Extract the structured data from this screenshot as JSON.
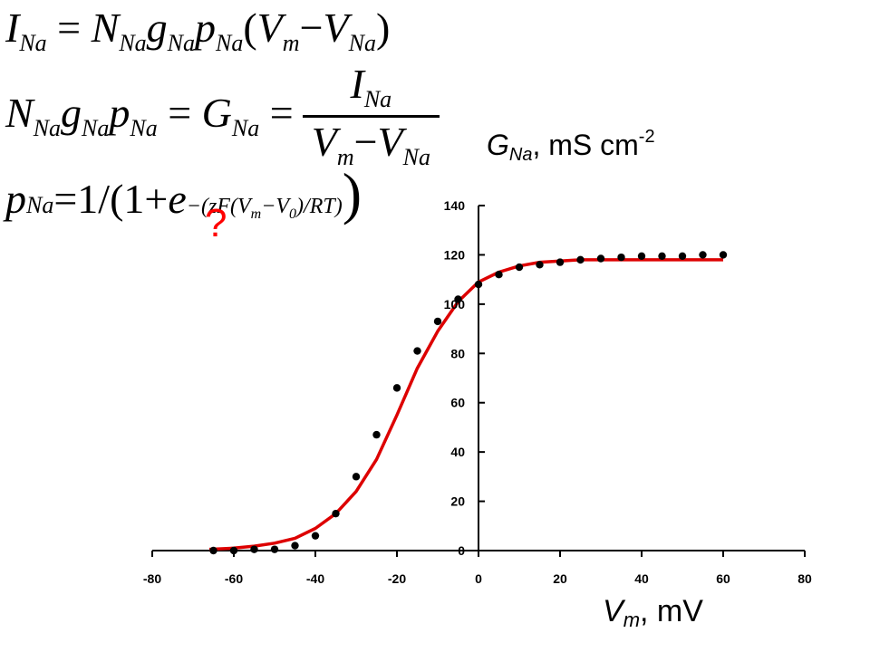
{
  "equations": {
    "eq1": {
      "I": "I",
      "I_sub": "Na",
      "eq": "=",
      "N": "N",
      "N_sub": "Na",
      "g": "g",
      "g_sub": "Na",
      "p": "p",
      "p_sub": "Na",
      "paren_open": "(",
      "V1": "V",
      "V1_sub": "m",
      "minus": "−",
      "V2": "V",
      "V2_sub": "Na",
      "paren_close": ")"
    },
    "eq2": {
      "N": "N",
      "N_sub": "Na",
      "g": "g",
      "g_sub": "Na",
      "p": "p",
      "p_sub": "Na",
      "eq1": "=",
      "G": "G",
      "G_sub": "Na",
      "eq2": "=",
      "num_I": "I",
      "num_I_sub": "Na",
      "den_V1": "V",
      "den_V1_sub": "m",
      "den_minus": "−",
      "den_V2": "V",
      "den_V2_sub": "Na"
    },
    "eq3": {
      "p": "p",
      "p_sub": "Na",
      "eq": "=",
      "one": "1/",
      "lp": "(",
      "one_plus": "1+",
      "e": "e",
      "exp_a": "−(zF(V",
      "exp_a_sub": "m",
      "exp_b": "−V",
      "exp_b_sub": "0",
      "exp_c": ")/RT)",
      "rp1": ")",
      "rp2": ")"
    }
  },
  "annotation": {
    "question_mark": "?"
  },
  "chart_data": {
    "type": "scatter",
    "ylabel": {
      "symbol": "G",
      "sub": "Na",
      "unit": ", mS cm",
      "exp": "-2"
    },
    "xlabel": {
      "symbol": "V",
      "sub": "m",
      "unit": ", mV"
    },
    "xlim": [
      -80,
      80
    ],
    "ylim": [
      0,
      140
    ],
    "x_ticks": [
      -80,
      -60,
      -40,
      -20,
      0,
      20,
      40,
      60,
      80
    ],
    "y_ticks": [
      0,
      20,
      40,
      60,
      80,
      100,
      120,
      140
    ],
    "x_tick_labels": [
      "-80",
      "-60",
      "-40",
      "-20",
      "0",
      "20",
      "40",
      "60",
      "80"
    ],
    "y_tick_labels": [
      "0",
      "20",
      "40",
      "60",
      "80",
      "100",
      "120",
      "140"
    ],
    "grid": false,
    "series": [
      {
        "kind": "points",
        "color": "#000000",
        "x": [
          -65,
          -60,
          -55,
          -50,
          -45,
          -40,
          -35,
          -30,
          -25,
          -20,
          -15,
          -10,
          -5,
          0,
          5,
          10,
          15,
          20,
          25,
          30,
          35,
          40,
          45,
          50,
          55,
          60
        ],
        "y": [
          0,
          0,
          0.5,
          0.5,
          2,
          6,
          15,
          30,
          47,
          66,
          81,
          93,
          102,
          108,
          112,
          115,
          116,
          117,
          118,
          118.5,
          119,
          119.5,
          119.5,
          119.5,
          120,
          120
        ]
      },
      {
        "kind": "line",
        "color": "#dd0000",
        "x": [
          -66,
          -60,
          -55,
          -50,
          -45,
          -40,
          -35,
          -30,
          -25,
          -20,
          -15,
          -10,
          -5,
          0,
          5,
          10,
          15,
          20,
          25,
          30,
          35,
          40,
          45,
          50,
          55,
          60
        ],
        "y": [
          0.5,
          1,
          1.8,
          3,
          5,
          9,
          15,
          24,
          37,
          55,
          74,
          89,
          101,
          109,
          113,
          115.5,
          117,
          117.5,
          118,
          118,
          118,
          118,
          118,
          118,
          118,
          118
        ]
      }
    ]
  }
}
